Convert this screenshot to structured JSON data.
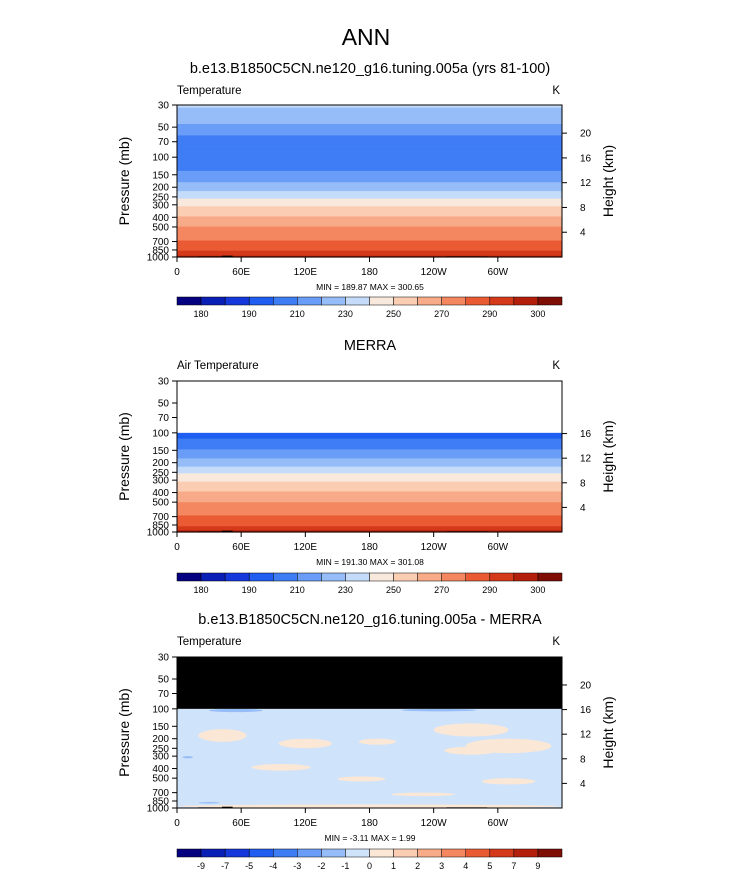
{
  "figure": {
    "title": "ANN"
  },
  "chart_data": [
    {
      "type": "heatmap",
      "panel_title": "b.e13.B1850C5CN.ne120_g16.tuning.005a (yrs 81-100)",
      "variable_label": "Temperature",
      "units_label": "K",
      "ylabel": "Pressure (mb)",
      "ylabel_right": "Height (km)",
      "x_ticks": [
        "0",
        "60E",
        "120E",
        "180",
        "120W",
        "60W"
      ],
      "x_tick_lon": [
        0,
        60,
        120,
        180,
        240,
        300
      ],
      "x_range_lon": [
        0,
        360
      ],
      "y_ticks": [
        "30",
        "50",
        "70",
        "100",
        "150",
        "200",
        "250",
        "300",
        "400",
        "500",
        "700",
        "850",
        "1000"
      ],
      "y_range_mb": [
        1000,
        30
      ],
      "y_log_scale": true,
      "height_ticks": [
        "4",
        "8",
        "12",
        "16",
        "20"
      ],
      "stats": "MIN = 189.87  MAX = 300.65",
      "colorbar_labels": [
        "180",
        "190",
        "210",
        "230",
        "250",
        "270",
        "290",
        "300"
      ],
      "levels": [
        180,
        185,
        190,
        200,
        210,
        220,
        230,
        240,
        250,
        260,
        270,
        280,
        290,
        295,
        300
      ],
      "colors": [
        "#050080",
        "#0a1fb6",
        "#1538dc",
        "#1f5ef0",
        "#3f7df5",
        "#6a9df7",
        "#96bdf8",
        "#c4dcfa",
        "#f9e9dc",
        "#fbcdb2",
        "#f8ab88",
        "#f48660",
        "#ea5b34",
        "#d43a1a",
        "#b41f0c",
        "#7e0d06"
      ],
      "pressure_profile_mb": [
        30,
        40,
        50,
        60,
        70,
        80,
        100,
        130,
        150,
        175,
        200,
        225,
        250,
        275,
        300,
        350,
        400,
        450,
        500,
        600,
        700,
        775,
        850,
        925,
        1000
      ],
      "temperature_profile_K": [
        231,
        225,
        218,
        210,
        205,
        205,
        205,
        208,
        213,
        219,
        225,
        232,
        238,
        244,
        249,
        255,
        261,
        266,
        270,
        276,
        281,
        285,
        289,
        293,
        296
      ],
      "masked_above_mb": null
    },
    {
      "type": "heatmap",
      "panel_title": "MERRA",
      "variable_label": "Air Temperature",
      "units_label": "K",
      "ylabel": "Pressure (mb)",
      "ylabel_right": "Height (km)",
      "x_ticks": [
        "0",
        "60E",
        "120E",
        "180",
        "120W",
        "60W"
      ],
      "x_tick_lon": [
        0,
        60,
        120,
        180,
        240,
        300
      ],
      "x_range_lon": [
        0,
        360
      ],
      "y_ticks": [
        "30",
        "50",
        "70",
        "100",
        "150",
        "200",
        "250",
        "300",
        "400",
        "500",
        "700",
        "850",
        "1000"
      ],
      "y_range_mb": [
        1000,
        30
      ],
      "y_log_scale": true,
      "height_ticks": [
        "4",
        "8",
        "12",
        "16"
      ],
      "stats": "MIN = 191.30  MAX = 301.08",
      "colorbar_labels": [
        "180",
        "190",
        "210",
        "230",
        "250",
        "270",
        "290",
        "300"
      ],
      "levels": [
        180,
        185,
        190,
        200,
        210,
        220,
        230,
        240,
        250,
        260,
        270,
        280,
        290,
        295,
        300
      ],
      "colors": [
        "#050080",
        "#0a1fb6",
        "#1538dc",
        "#1f5ef0",
        "#3f7df5",
        "#6a9df7",
        "#96bdf8",
        "#c4dcfa",
        "#f9e9dc",
        "#fbcdb2",
        "#f8ab88",
        "#f48660",
        "#ea5b34",
        "#d43a1a",
        "#b41f0c",
        "#7e0d06"
      ],
      "pressure_profile_mb": [
        100,
        130,
        150,
        175,
        200,
        225,
        250,
        275,
        300,
        350,
        400,
        450,
        500,
        600,
        700,
        775,
        850,
        925,
        1000
      ],
      "temperature_profile_K": [
        196,
        204,
        211,
        218,
        225,
        232,
        238,
        244,
        249,
        255,
        261,
        266,
        270,
        276,
        281,
        285,
        289,
        293,
        297
      ],
      "no_data_above_mb": 100
    },
    {
      "type": "heatmap",
      "panel_title": "b.e13.B1850C5CN.ne120_g16.tuning.005a - MERRA",
      "variable_label": "Temperature",
      "units_label": "K",
      "ylabel": "Pressure (mb)",
      "ylabel_right": "Height (km)",
      "x_ticks": [
        "0",
        "60E",
        "120E",
        "180",
        "120W",
        "60W"
      ],
      "x_tick_lon": [
        0,
        60,
        120,
        180,
        240,
        300
      ],
      "x_range_lon": [
        0,
        360
      ],
      "y_ticks": [
        "30",
        "50",
        "70",
        "100",
        "150",
        "200",
        "250",
        "300",
        "400",
        "500",
        "700",
        "850",
        "1000"
      ],
      "y_range_mb": [
        1000,
        30
      ],
      "y_log_scale": true,
      "height_ticks": [
        "4",
        "8",
        "12",
        "16",
        "20"
      ],
      "stats": "MIN = -3.11  MAX =   1.99",
      "colorbar_labels": [
        "-9",
        "-7",
        "-5",
        "-4",
        "-3",
        "-2",
        "-1",
        "0",
        "1",
        "2",
        "3",
        "4",
        "5",
        "7",
        "9"
      ],
      "levels": [
        -9,
        -7,
        -5,
        -4,
        -3,
        -2,
        -1,
        0,
        1,
        2,
        3,
        4,
        5,
        7,
        9
      ],
      "colors": [
        "#050080",
        "#0a1fb6",
        "#1538dc",
        "#1f5ef0",
        "#3f7df5",
        "#6a9df7",
        "#96bdf8",
        "#cfe3fb",
        "#fbe7d6",
        "#fbcdb2",
        "#f8ab88",
        "#f48660",
        "#ea5b34",
        "#d43a1a",
        "#b41f0c",
        "#7e0d06"
      ],
      "background_value_K": -0.5,
      "masked_above_mb": 100,
      "warm_patches": [
        {
          "lon": [
            20,
            65
          ],
          "p_mb": [
            160,
            215
          ]
        },
        {
          "lon": [
            95,
            145
          ],
          "p_mb": [
            200,
            250
          ]
        },
        {
          "lon": [
            240,
            310
          ],
          "p_mb": [
            140,
            190
          ]
        },
        {
          "lon": [
            170,
            205
          ],
          "p_mb": [
            200,
            230
          ]
        },
        {
          "lon": [
            250,
            300
          ],
          "p_mb": [
            240,
            290
          ]
        },
        {
          "lon": [
            270,
            350
          ],
          "p_mb": [
            200,
            280
          ]
        },
        {
          "lon": [
            70,
            125
          ],
          "p_mb": [
            360,
            420
          ]
        },
        {
          "lon": [
            150,
            195
          ],
          "p_mb": [
            480,
            540
          ]
        },
        {
          "lon": [
            285,
            335
          ],
          "p_mb": [
            500,
            580
          ]
        },
        {
          "lon": [
            0,
            360
          ],
          "p_mb": [
            920,
            1000
          ]
        },
        {
          "lon": [
            200,
            260
          ],
          "p_mb": [
            700,
            760
          ]
        }
      ],
      "cool_patches": [
        {
          "lon": [
            30,
            80
          ],
          "p_mb": [
            100,
            108
          ]
        },
        {
          "lon": [
            210,
            280
          ],
          "p_mb": [
            100,
            106
          ]
        },
        {
          "lon": [
            5,
            15
          ],
          "p_mb": [
            300,
            315
          ]
        },
        {
          "lon": [
            20,
            40
          ],
          "p_mb": [
            870,
            900
          ]
        }
      ]
    }
  ]
}
